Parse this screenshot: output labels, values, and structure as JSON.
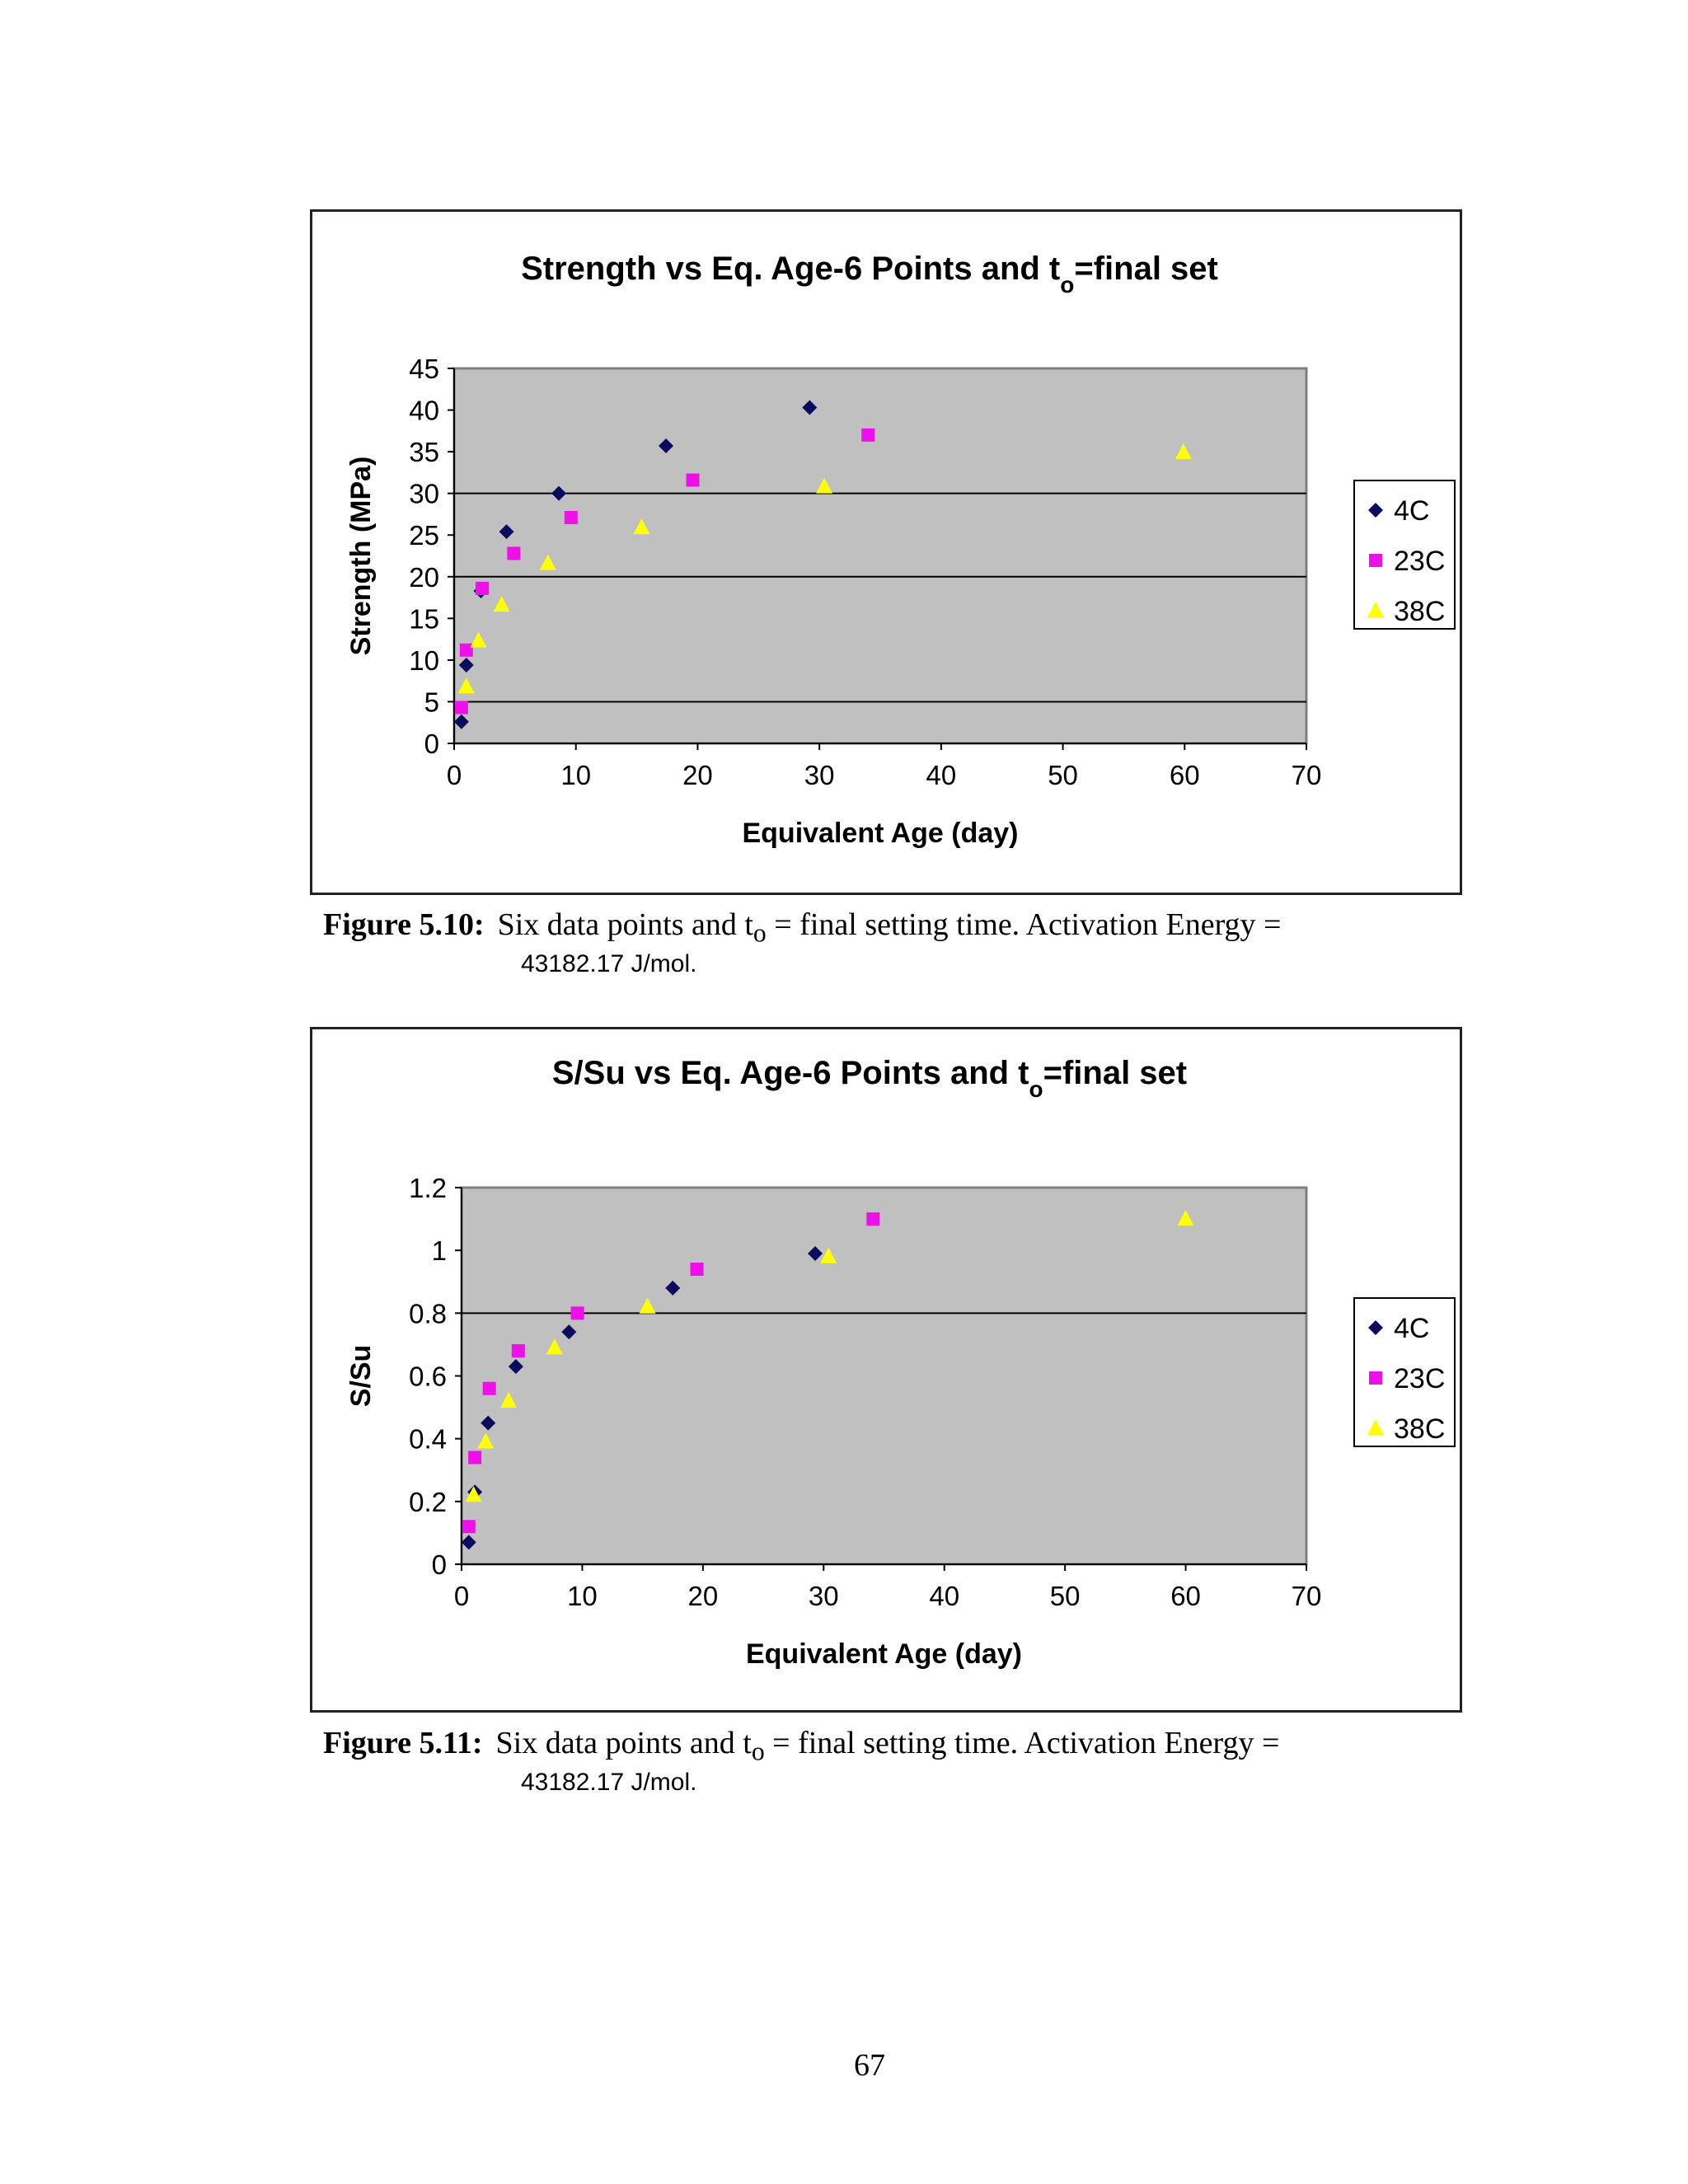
{
  "chart_data": [
    {
      "type": "scatter",
      "title_main": "Strength vs Eq. Age-6 Points and t",
      "title_sub": "o",
      "title_tail": "=final set",
      "xlabel": "Equivalent Age (day)",
      "ylabel": "Strength (MPa)",
      "xlim": [
        0,
        70
      ],
      "ylim": [
        0,
        45
      ],
      "xticks": [
        "0",
        "10",
        "20",
        "30",
        "40",
        "50",
        "60",
        "70"
      ],
      "yticks": [
        "0",
        "5",
        "10",
        "15",
        "20",
        "25",
        "30",
        "35",
        "40",
        "45"
      ],
      "grid_y": [
        5,
        20,
        30
      ],
      "legend_position": "right",
      "series": [
        {
          "name": "4C",
          "marker": "diamond",
          "color": "#0a0a5e",
          "points": [
            [
              0.6,
              2.6
            ],
            [
              1.0,
              9.4
            ],
            [
              2.2,
              18.3
            ],
            [
              4.3,
              25.4
            ],
            [
              8.6,
              30.0
            ],
            [
              17.4,
              35.7
            ],
            [
              29.2,
              40.3
            ]
          ]
        },
        {
          "name": "23C",
          "marker": "square",
          "color": "#ee10e8",
          "points": [
            [
              0.6,
              4.3
            ],
            [
              1.0,
              11.2
            ],
            [
              2.3,
              18.6
            ],
            [
              4.9,
              22.8
            ],
            [
              9.6,
              27.1
            ],
            [
              19.6,
              31.6
            ],
            [
              34.0,
              37.0
            ]
          ]
        },
        {
          "name": "38C",
          "marker": "triangle",
          "color": "#ffff00",
          "points": [
            [
              1.0,
              6.8
            ],
            [
              2.0,
              12.3
            ],
            [
              3.9,
              16.6
            ],
            [
              7.7,
              21.6
            ],
            [
              15.4,
              25.9
            ],
            [
              30.4,
              30.8
            ],
            [
              59.9,
              34.9
            ]
          ]
        }
      ]
    },
    {
      "type": "scatter",
      "title_main": "S/Su vs Eq. Age-6 Points and t",
      "title_sub": "o",
      "title_tail": "=final set",
      "xlabel": "Equivalent Age (day)",
      "ylabel": "S/Su",
      "xlim": [
        0,
        70
      ],
      "ylim": [
        0,
        1.2
      ],
      "xticks": [
        "0",
        "10",
        "20",
        "30",
        "40",
        "50",
        "60",
        "70"
      ],
      "yticks": [
        "0",
        "0.2",
        "0.4",
        "0.6",
        "0.8",
        "1",
        "1.2"
      ],
      "grid_y": [
        0.8
      ],
      "legend_position": "right",
      "series": [
        {
          "name": "4C",
          "marker": "diamond",
          "color": "#0a0a5e",
          "points": [
            [
              0.6,
              0.07
            ],
            [
              1.1,
              0.23
            ],
            [
              2.2,
              0.45
            ],
            [
              4.5,
              0.63
            ],
            [
              8.9,
              0.74
            ],
            [
              17.5,
              0.88
            ],
            [
              29.3,
              0.99
            ]
          ]
        },
        {
          "name": "23C",
          "marker": "square",
          "color": "#ee10e8",
          "points": [
            [
              0.6,
              0.12
            ],
            [
              1.1,
              0.34
            ],
            [
              2.3,
              0.56
            ],
            [
              4.7,
              0.68
            ],
            [
              9.6,
              0.8
            ],
            [
              19.5,
              0.94
            ],
            [
              34.1,
              1.1
            ]
          ]
        },
        {
          "name": "38C",
          "marker": "triangle",
          "color": "#ffff00",
          "points": [
            [
              1.0,
              0.22
            ],
            [
              2.0,
              0.39
            ],
            [
              3.9,
              0.52
            ],
            [
              7.7,
              0.69
            ],
            [
              15.4,
              0.82
            ],
            [
              30.4,
              0.98
            ],
            [
              60.0,
              1.1
            ]
          ]
        }
      ]
    }
  ],
  "captions": [
    {
      "label": "Figure 5.10:",
      "text_a": "Six data points and t",
      "sub": "o",
      "text_b": " =  final setting time.  Activation Energy =",
      "line2": "43182.17 J/mol."
    },
    {
      "label": "Figure 5.11:",
      "text_a": "Six data points and t",
      "sub": "o",
      "text_b": " =  final setting time.  Activation Energy =",
      "line2": "43182.17 J/mol."
    }
  ],
  "page_number": "67",
  "colors": {
    "plot_bg": "#c0c0c0",
    "grid": "#000000"
  }
}
